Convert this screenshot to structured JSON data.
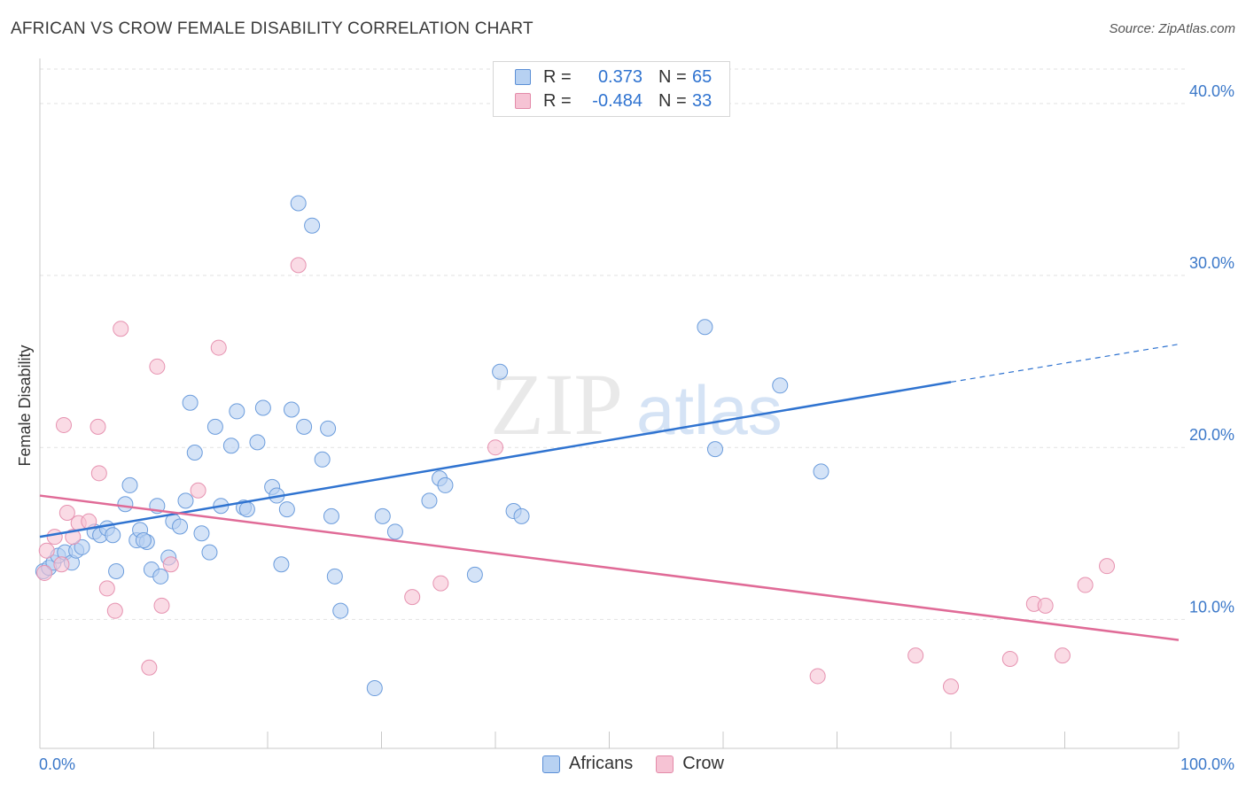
{
  "title": "AFRICAN VS CROW FEMALE DISABILITY CORRELATION CHART",
  "source": "Source: ZipAtlas.com",
  "watermark": {
    "zip": "ZIP",
    "atlas": "atlas"
  },
  "colors": {
    "blue": "#2f73d0",
    "blue_fill": "#b7d1f2",
    "pink": "#e06b97",
    "pink_fill": "#f6c3d4",
    "axis_text": "#3b78c9",
    "grid": "#e2e2e2"
  },
  "legend": {
    "rows": [
      {
        "r_label": "R =",
        "r_value": "0.373",
        "n_label": "N =",
        "n_value": "65"
      },
      {
        "r_label": "R =",
        "r_value": "-0.484",
        "n_label": "N =",
        "n_value": "33"
      }
    ]
  },
  "bottom_legend": [
    "Africans",
    "Crow"
  ],
  "chart_data": {
    "type": "scatter",
    "ylabel": "Female Disability",
    "xlim": [
      0,
      100
    ],
    "ylim": [
      2.5,
      42
    ],
    "x_tick_labels": [
      "0.0%",
      "100.0%"
    ],
    "y_ticks": [
      10,
      20,
      30,
      40
    ],
    "y_tick_labels": [
      "10.0%",
      "20.0%",
      "30.0%",
      "40.0%"
    ],
    "grid": true,
    "series": [
      {
        "name": "Africans",
        "color": "#2f73d0",
        "r": 0.373,
        "n": 65,
        "trend": {
          "x0": 0,
          "y0": 14.8,
          "x1": 80,
          "y1": 23.8,
          "dash_to_x": 100,
          "dash_to_y": 26.0
        },
        "points": [
          [
            0.3,
            12.8
          ],
          [
            0.8,
            13.0
          ],
          [
            1.2,
            13.3
          ],
          [
            1.6,
            13.7
          ],
          [
            2.2,
            13.9
          ],
          [
            2.8,
            13.3
          ],
          [
            3.2,
            14.0
          ],
          [
            3.7,
            14.2
          ],
          [
            4.8,
            15.1
          ],
          [
            5.3,
            14.9
          ],
          [
            5.9,
            15.3
          ],
          [
            6.4,
            14.9
          ],
          [
            6.7,
            12.8
          ],
          [
            7.5,
            16.7
          ],
          [
            7.9,
            17.8
          ],
          [
            8.5,
            14.6
          ],
          [
            8.8,
            15.2
          ],
          [
            9.4,
            14.5
          ],
          [
            9.8,
            12.9
          ],
          [
            10.3,
            16.6
          ],
          [
            10.6,
            12.5
          ],
          [
            11.3,
            13.6
          ],
          [
            11.7,
            15.7
          ],
          [
            12.3,
            15.4
          ],
          [
            12.8,
            16.9
          ],
          [
            13.2,
            22.6
          ],
          [
            13.6,
            19.7
          ],
          [
            14.2,
            15.0
          ],
          [
            14.9,
            13.9
          ],
          [
            15.4,
            21.2
          ],
          [
            15.9,
            16.6
          ],
          [
            16.8,
            20.1
          ],
          [
            17.3,
            22.1
          ],
          [
            17.9,
            16.5
          ],
          [
            18.2,
            16.4
          ],
          [
            19.1,
            20.3
          ],
          [
            19.6,
            22.3
          ],
          [
            20.4,
            17.7
          ],
          [
            20.8,
            17.2
          ],
          [
            21.2,
            13.2
          ],
          [
            21.7,
            16.4
          ],
          [
            22.1,
            22.2
          ],
          [
            22.7,
            34.2
          ],
          [
            23.2,
            21.2
          ],
          [
            23.9,
            32.9
          ],
          [
            24.8,
            19.3
          ],
          [
            25.3,
            21.1
          ],
          [
            25.6,
            16.0
          ],
          [
            25.9,
            12.5
          ],
          [
            26.4,
            10.5
          ],
          [
            29.4,
            6.0
          ],
          [
            30.1,
            16.0
          ],
          [
            31.2,
            15.1
          ],
          [
            34.2,
            16.9
          ],
          [
            35.1,
            18.2
          ],
          [
            35.6,
            17.8
          ],
          [
            38.2,
            12.6
          ],
          [
            40.4,
            24.4
          ],
          [
            41.6,
            16.3
          ],
          [
            42.3,
            16.0
          ],
          [
            58.4,
            27.0
          ],
          [
            59.3,
            19.9
          ],
          [
            65.0,
            23.6
          ],
          [
            68.6,
            18.6
          ],
          [
            9.1,
            14.6
          ]
        ]
      },
      {
        "name": "Crow",
        "color": "#e06b97",
        "r": -0.484,
        "n": 33,
        "trend": {
          "x0": 0,
          "y0": 17.2,
          "x1": 100,
          "y1": 8.8
        },
        "points": [
          [
            0.4,
            12.7
          ],
          [
            0.6,
            14.0
          ],
          [
            1.3,
            14.8
          ],
          [
            1.9,
            13.2
          ],
          [
            2.1,
            21.3
          ],
          [
            2.4,
            16.2
          ],
          [
            2.9,
            14.8
          ],
          [
            3.4,
            15.6
          ],
          [
            4.3,
            15.7
          ],
          [
            5.1,
            21.2
          ],
          [
            5.2,
            18.5
          ],
          [
            5.9,
            11.8
          ],
          [
            6.6,
            10.5
          ],
          [
            7.1,
            26.9
          ],
          [
            9.6,
            7.2
          ],
          [
            10.3,
            24.7
          ],
          [
            10.7,
            10.8
          ],
          [
            11.5,
            13.2
          ],
          [
            13.9,
            17.5
          ],
          [
            15.7,
            25.8
          ],
          [
            22.7,
            30.6
          ],
          [
            32.7,
            11.3
          ],
          [
            35.2,
            12.1
          ],
          [
            40.0,
            20.0
          ],
          [
            68.3,
            6.7
          ],
          [
            76.9,
            7.9
          ],
          [
            80.0,
            6.1
          ],
          [
            85.2,
            7.7
          ],
          [
            87.3,
            10.9
          ],
          [
            88.3,
            10.8
          ],
          [
            89.8,
            7.9
          ],
          [
            91.8,
            12.0
          ],
          [
            93.7,
            13.1
          ]
        ]
      }
    ]
  }
}
